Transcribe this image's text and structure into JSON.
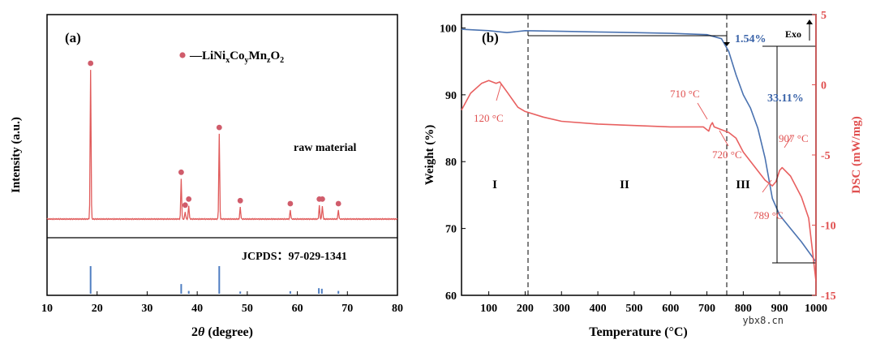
{
  "watermark": "ybx8.cn",
  "chart_data": [
    {
      "type": "line",
      "panel_label": "(a)",
      "title": "",
      "xlabel": "2θ (degree)",
      "xlabel_prefix": "2",
      "xlabel_symbol": "θ",
      "xlabel_suffix": " (degree)",
      "ylabel": "Intensity (a.u.)",
      "xlim": [
        10,
        80
      ],
      "x_ticks": [
        "10",
        "20",
        "30",
        "40",
        "50",
        "60",
        "70",
        "80"
      ],
      "legend": {
        "marker": "●",
        "prefix": "—LiNi",
        "sub_x": "x",
        "co": "Co",
        "sub_y": "y",
        "mn": "Mn",
        "sub_z": "z",
        "o": "O",
        "sub_2": "2"
      },
      "series": [
        {
          "name": "raw material",
          "color": "#e05a5a",
          "peaks": [
            {
              "x": 18.7,
              "intensity": 100
            },
            {
              "x": 36.8,
              "intensity": 27
            },
            {
              "x": 37.6,
              "intensity": 5
            },
            {
              "x": 38.3,
              "intensity": 9
            },
            {
              "x": 44.4,
              "intensity": 57
            },
            {
              "x": 48.6,
              "intensity": 8
            },
            {
              "x": 58.6,
              "intensity": 6
            },
            {
              "x": 64.4,
              "intensity": 9
            },
            {
              "x": 65.0,
              "intensity": 9
            },
            {
              "x": 68.2,
              "intensity": 6
            }
          ]
        },
        {
          "name": "JCPDS: 97-029-1341",
          "color": "#4f7ec2",
          "reference_lines": [
            {
              "x": 18.7,
              "intensity": 100
            },
            {
              "x": 36.8,
              "intensity": 35
            },
            {
              "x": 38.3,
              "intensity": 10
            },
            {
              "x": 44.4,
              "intensity": 100
            },
            {
              "x": 48.6,
              "intensity": 8
            },
            {
              "x": 58.6,
              "intensity": 9
            },
            {
              "x": 64.3,
              "intensity": 20
            },
            {
              "x": 64.9,
              "intensity": 18
            },
            {
              "x": 68.2,
              "intensity": 10
            }
          ]
        }
      ],
      "annotations": [
        "raw material",
        "JCPDS：97-029-1341"
      ]
    },
    {
      "type": "line",
      "panel_label": "(b)",
      "xlabel": "Temperature (°C)",
      "ylabel": "Weight (%)",
      "y2label": "DSC (mW/mg)",
      "xlim": [
        25,
        1000
      ],
      "ylim": [
        60,
        102
      ],
      "y2lim": [
        -15,
        5
      ],
      "x_ticks": [
        "100",
        "200",
        "300",
        "400",
        "500",
        "600",
        "700",
        "800",
        "900",
        "1000"
      ],
      "y_ticks": [
        "60",
        "70",
        "80",
        "90",
        "100"
      ],
      "y2_ticks": [
        "-15",
        "-10",
        "-5",
        "0",
        "5"
      ],
      "series": [
        {
          "name": "Weight",
          "axis": "left",
          "color": "#4a72b0",
          "x": [
            25,
            100,
            150,
            200,
            300,
            400,
            500,
            600,
            700,
            740,
            760,
            780,
            800,
            820,
            840,
            860,
            880,
            900,
            930,
            960,
            1000
          ],
          "y": [
            99.8,
            99.6,
            99.3,
            99.6,
            99.5,
            99.4,
            99.3,
            99.2,
            99.0,
            98.4,
            96.5,
            93.0,
            90.0,
            88.0,
            85.0,
            80.5,
            74.5,
            72.0,
            70.0,
            68.0,
            65.0
          ]
        },
        {
          "name": "DSC",
          "axis": "right",
          "color": "#e86060",
          "x": [
            25,
            50,
            80,
            100,
            120,
            130,
            150,
            180,
            200,
            250,
            300,
            400,
            500,
            600,
            690,
            705,
            710,
            715,
            720,
            740,
            760,
            780,
            800,
            830,
            860,
            880,
            890,
            900,
            907,
            930,
            960,
            980,
            1000
          ],
          "y": [
            -1.8,
            -0.6,
            0.1,
            0.3,
            0.1,
            0.2,
            -0.5,
            -1.6,
            -1.9,
            -2.3,
            -2.6,
            -2.8,
            -2.9,
            -3.0,
            -3.0,
            -3.3,
            -2.9,
            -2.7,
            -3.0,
            -3.2,
            -3.4,
            -3.8,
            -4.8,
            -5.8,
            -6.8,
            -7.2,
            -6.9,
            -6.1,
            -5.9,
            -6.5,
            -8.0,
            -9.5,
            -14.0
          ]
        }
      ],
      "region_labels": [
        "I",
        "II",
        "III"
      ],
      "annotations": {
        "peak_120": "120 °C",
        "peak_710": "710 °C",
        "peak_720": "720 °C",
        "peak_789": "789 °C",
        "peak_907": "907 °C",
        "loss_small": "1.54%",
        "loss_big": "33.11%",
        "exo": "Exo"
      },
      "dashed_lines_x": [
        200,
        750
      ]
    }
  ]
}
